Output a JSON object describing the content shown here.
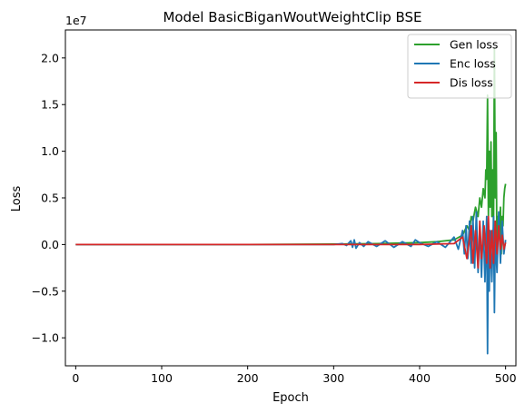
{
  "chart_data": {
    "type": "line",
    "title": "Model BasicBiganWoutWeightClip BSE",
    "xlabel": "Epoch",
    "ylabel": "Loss",
    "offset_text": "1e7",
    "xlim": [
      -12,
      512
    ],
    "ylim": [
      -1.3,
      2.3
    ],
    "xticks": [
      0,
      100,
      200,
      300,
      400,
      500
    ],
    "yticks": [
      -1.0,
      -0.5,
      0.0,
      0.5,
      1.0,
      1.5,
      2.0
    ],
    "ytick_labels": [
      "−1.0",
      "−0.5",
      "0.0",
      "0.5",
      "1.0",
      "1.5",
      "2.0"
    ],
    "legend_loc": "top-right",
    "series": [
      {
        "name": "Gen loss",
        "color": "#2ca02c",
        "x": [
          0,
          100,
          200,
          300,
          350,
          400,
          420,
          440,
          450,
          455,
          458,
          460,
          462,
          465,
          468,
          470,
          472,
          474,
          476,
          477,
          478,
          479,
          480,
          481,
          482,
          483,
          484,
          485,
          486,
          487,
          488,
          489,
          490,
          491,
          492,
          493,
          494,
          495,
          496,
          497,
          498,
          499,
          500
        ],
        "values": [
          0,
          0,
          0,
          0.005,
          0.01,
          0.02,
          0.03,
          0.05,
          0.1,
          0.2,
          0.15,
          0.3,
          0.25,
          0.4,
          0.3,
          0.5,
          0.4,
          0.6,
          0.5,
          0.8,
          0.7,
          1.6,
          0.3,
          1.0,
          0.4,
          1.1,
          0.3,
          0.8,
          0.2,
          2.1,
          0.5,
          1.2,
          -0.2,
          0.3,
          0.1,
          0.2,
          0.4,
          -0.1,
          0.3,
          0.2,
          0.5,
          0.6,
          0.65
        ]
      },
      {
        "name": "Enc loss",
        "color": "#1f77b4",
        "x": [
          0,
          100,
          200,
          300,
          310,
          315,
          320,
          322,
          324,
          326,
          330,
          335,
          340,
          350,
          360,
          370,
          380,
          390,
          395,
          400,
          410,
          420,
          430,
          440,
          445,
          450,
          452,
          454,
          456,
          458,
          460,
          462,
          464,
          466,
          468,
          470,
          472,
          474,
          476,
          478,
          479,
          480,
          481,
          482,
          484,
          486,
          487,
          488,
          490,
          492,
          494,
          496,
          498,
          500
        ],
        "values": [
          0,
          0,
          0,
          0,
          0.01,
          -0.01,
          0.04,
          -0.03,
          0.05,
          -0.04,
          0.02,
          -0.02,
          0.03,
          -0.02,
          0.04,
          -0.03,
          0.03,
          -0.02,
          0.05,
          0.02,
          -0.02,
          0.03,
          -0.03,
          0.08,
          -0.05,
          0.15,
          -0.1,
          0.2,
          -0.15,
          0.25,
          -0.2,
          0.3,
          -0.25,
          0.35,
          -0.3,
          0.2,
          -0.35,
          0.25,
          -0.4,
          0.3,
          -1.17,
          0.2,
          -0.5,
          0.15,
          -0.4,
          0.3,
          -0.73,
          0.1,
          -0.3,
          0.35,
          -0.2,
          0.25,
          -0.1,
          0.05
        ]
      },
      {
        "name": "Dis loss",
        "color": "#d62728",
        "x": [
          0,
          100,
          200,
          300,
          400,
          440,
          450,
          455,
          460,
          462,
          465,
          468,
          470,
          472,
          475,
          478,
          480,
          482,
          484,
          486,
          488,
          490,
          492,
          494,
          496,
          498,
          500
        ],
        "values": [
          0,
          0,
          0,
          0,
          0,
          0.01,
          0.08,
          -0.15,
          0.2,
          -0.2,
          0.15,
          -0.25,
          0.25,
          -0.15,
          0.2,
          -0.2,
          0.3,
          -0.25,
          0.15,
          -0.2,
          0.25,
          -0.1,
          0.2,
          -0.05,
          0.1,
          -0.05,
          0.02
        ]
      }
    ]
  }
}
